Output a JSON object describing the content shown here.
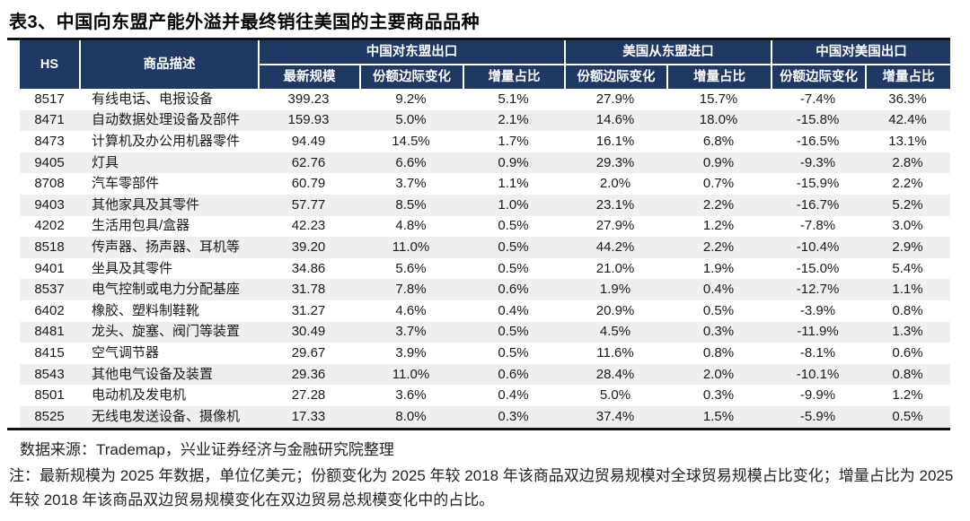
{
  "title": "表3、中国向东盟产能外溢并最终销往美国的主要商品品种",
  "table": {
    "col_hs": "HS",
    "col_desc": "商品描述",
    "groups": [
      {
        "label": "中国对东盟出口",
        "subcols": [
          "最新规模",
          "份额边际变化",
          "增量占比"
        ]
      },
      {
        "label": "美国从东盟进口",
        "subcols": [
          "份额边际变化",
          "增量占比"
        ]
      },
      {
        "label": "中国对美国出口",
        "subcols": [
          "份额边际变化",
          "增量占比"
        ]
      }
    ],
    "rows": [
      {
        "hs": "8517",
        "desc": "有线电话、电报设备",
        "cells": [
          "399.23",
          "9.2%",
          "5.1%",
          "27.9%",
          "15.7%",
          "-7.4%",
          "36.3%"
        ]
      },
      {
        "hs": "8471",
        "desc": "自动数据处理设备及部件",
        "cells": [
          "159.93",
          "5.0%",
          "2.1%",
          "14.6%",
          "18.0%",
          "-15.8%",
          "42.4%"
        ]
      },
      {
        "hs": "8473",
        "desc": "计算机及办公用机器零件",
        "cells": [
          "94.49",
          "14.5%",
          "1.7%",
          "16.1%",
          "6.8%",
          "-16.5%",
          "13.1%"
        ]
      },
      {
        "hs": "9405",
        "desc": "灯具",
        "cells": [
          "62.76",
          "6.6%",
          "0.9%",
          "29.3%",
          "0.9%",
          "-9.3%",
          "2.8%"
        ]
      },
      {
        "hs": "8708",
        "desc": "汽车零部件",
        "cells": [
          "60.79",
          "3.7%",
          "1.1%",
          "2.0%",
          "0.7%",
          "-15.9%",
          "2.2%"
        ]
      },
      {
        "hs": "9403",
        "desc": "其他家具及其零件",
        "cells": [
          "57.77",
          "8.5%",
          "1.0%",
          "23.1%",
          "2.2%",
          "-16.7%",
          "5.2%"
        ]
      },
      {
        "hs": "4202",
        "desc": "生活用包具/盒器",
        "cells": [
          "42.23",
          "4.8%",
          "0.5%",
          "27.9%",
          "1.2%",
          "-7.8%",
          "3.0%"
        ]
      },
      {
        "hs": "8518",
        "desc": "传声器、扬声器、耳机等",
        "cells": [
          "39.20",
          "11.0%",
          "0.5%",
          "44.2%",
          "2.2%",
          "-10.4%",
          "2.9%"
        ]
      },
      {
        "hs": "9401",
        "desc": "坐具及其零件",
        "cells": [
          "34.86",
          "5.6%",
          "0.5%",
          "21.0%",
          "1.9%",
          "-15.0%",
          "5.4%"
        ]
      },
      {
        "hs": "8537",
        "desc": "电气控制或电力分配基座",
        "cells": [
          "31.78",
          "7.8%",
          "0.6%",
          "1.9%",
          "0.4%",
          "-12.7%",
          "1.1%"
        ]
      },
      {
        "hs": "6402",
        "desc": "橡胶、塑料制鞋靴",
        "cells": [
          "31.27",
          "4.6%",
          "0.4%",
          "20.9%",
          "0.5%",
          "-3.9%",
          "0.8%"
        ]
      },
      {
        "hs": "8481",
        "desc": "龙头、旋塞、阀门等装置",
        "cells": [
          "30.49",
          "3.7%",
          "0.5%",
          "4.5%",
          "0.3%",
          "-11.9%",
          "1.3%"
        ]
      },
      {
        "hs": "8415",
        "desc": "空气调节器",
        "cells": [
          "29.67",
          "3.9%",
          "0.5%",
          "11.6%",
          "0.8%",
          "-8.1%",
          "0.6%"
        ]
      },
      {
        "hs": "8543",
        "desc": "其他电气设备及装置",
        "cells": [
          "29.36",
          "11.0%",
          "0.6%",
          "28.4%",
          "2.0%",
          "-10.1%",
          "0.8%"
        ]
      },
      {
        "hs": "8501",
        "desc": "电动机及发电机",
        "cells": [
          "27.28",
          "3.6%",
          "0.4%",
          "5.0%",
          "0.3%",
          "-9.9%",
          "1.2%"
        ]
      },
      {
        "hs": "8525",
        "desc": "无线电发送设备、摄像机",
        "cells": [
          "17.33",
          "8.0%",
          "0.3%",
          "37.4%",
          "1.5%",
          "-5.9%",
          "0.5%"
        ]
      }
    ]
  },
  "footer": {
    "source": "数据来源：Trademap，兴业证券经济与金融研究院整理",
    "note": "注：最新规模为 2025 年数据，单位亿美元；份额变化为 2025 年较 2018 年该商品双边贸易规模对全球贸易规模占比变化；增量占比为 2025 年较 2018 年该商品双边贸易规模变化在双边贸易总规模变化中的占比。"
  },
  "colors": {
    "header_bg": "#1F3864",
    "stripe_bg": "#EFEFEF",
    "rule": "#111111",
    "header_text": "#FFFFFF"
  }
}
